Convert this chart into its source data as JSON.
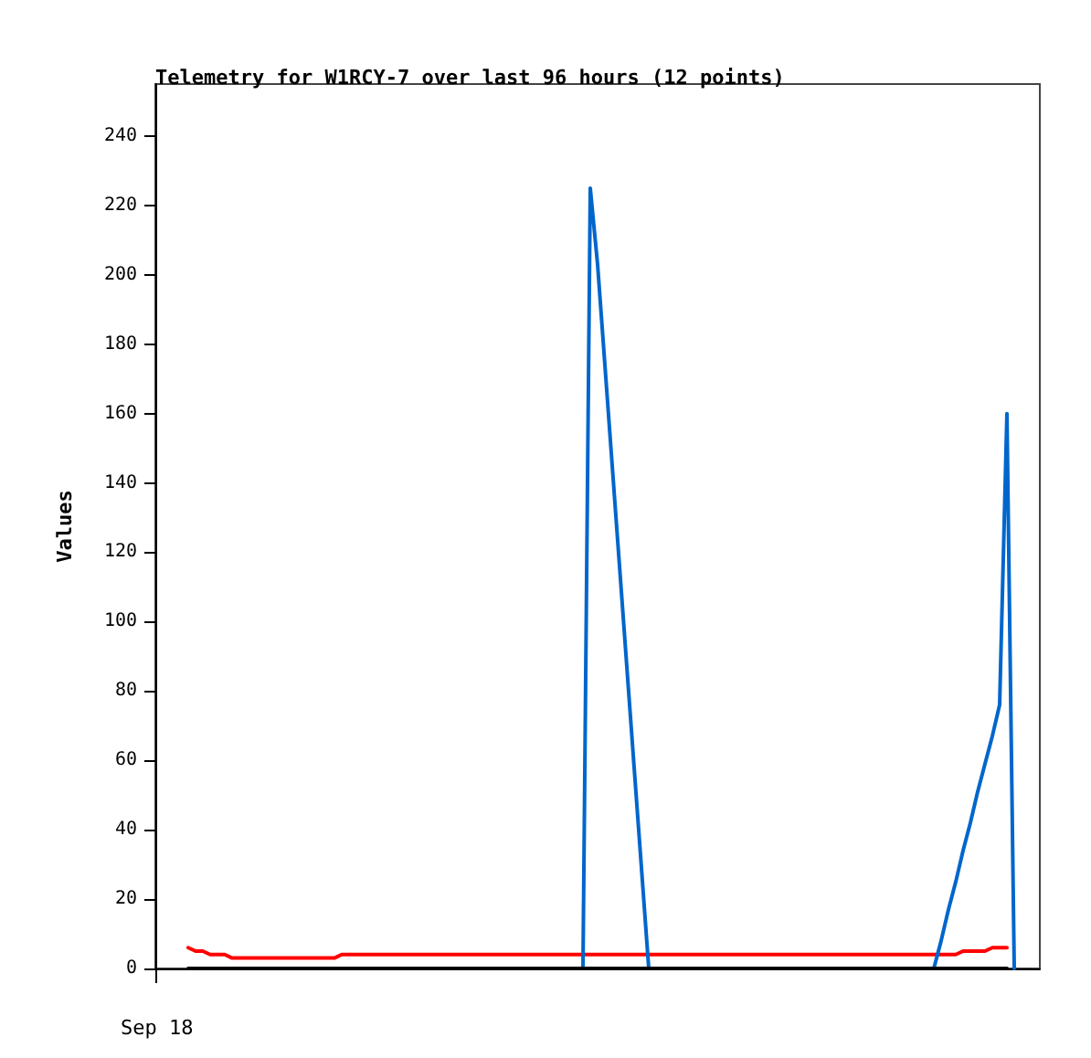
{
  "chart_data": {
    "type": "line",
    "title": "Telemetry for W1RCY-7 over last 96 hours (12 points)",
    "ylabel": "Values",
    "annotations": [
      "Sep 18"
    ],
    "ylim": [
      0,
      255
    ],
    "yticks": [
      0,
      20,
      40,
      60,
      80,
      100,
      120,
      140,
      160,
      180,
      200,
      220,
      240
    ],
    "grid": false,
    "marker": "none",
    "line_style": "solid",
    "categories": [
      null,
      null,
      null,
      null,
      null,
      null,
      null,
      null,
      null,
      null,
      null,
      null,
      null,
      null,
      null,
      null,
      null,
      null,
      null,
      null,
      null,
      null,
      null,
      null,
      null,
      null,
      null,
      null,
      null,
      null,
      null,
      null,
      null,
      null,
      null,
      null,
      null,
      null,
      null,
      null,
      null,
      null,
      null,
      null,
      null,
      null,
      null,
      null,
      null,
      null,
      null,
      null,
      null,
      null,
      null,
      null,
      null,
      null,
      null,
      null,
      null,
      null,
      null,
      null,
      null,
      null,
      null,
      null,
      null,
      null,
      null,
      null,
      null,
      null,
      null,
      null,
      null,
      null,
      null,
      null,
      null,
      null,
      null,
      null,
      null,
      null,
      null,
      null,
      null,
      null,
      null,
      null,
      null,
      null,
      null,
      null,
      null,
      null,
      null,
      null,
      null,
      null,
      null,
      null,
      null,
      null,
      null,
      null,
      null,
      null,
      null,
      null,
      null,
      null
    ],
    "series": [
      {
        "color": "#ff0000",
        "values": [
          6,
          5,
          5,
          4,
          4,
          4,
          3,
          3,
          3,
          3,
          3,
          3,
          3,
          3,
          3,
          3,
          3,
          3,
          3,
          3,
          3,
          4,
          4,
          4,
          4,
          4,
          4,
          4,
          4,
          4,
          4,
          4,
          4,
          4,
          4,
          4,
          4,
          4,
          4,
          4,
          4,
          4,
          4,
          4,
          4,
          4,
          4,
          4,
          4,
          4,
          4,
          4,
          4,
          4,
          4,
          4,
          4,
          4,
          4,
          4,
          4,
          4,
          4,
          4,
          4,
          4,
          4,
          4,
          4,
          4,
          4,
          4,
          4,
          4,
          4,
          4,
          4,
          4,
          4,
          4,
          4,
          4,
          4,
          4,
          4,
          4,
          4,
          4,
          4,
          4,
          4,
          4,
          4,
          4,
          4,
          4,
          4,
          4,
          4,
          4,
          4,
          4,
          4,
          4,
          4,
          4,
          5,
          5,
          5,
          5,
          6,
          6,
          6,
          null
        ]
      },
      {
        "color": "#0066cc",
        "values": [
          null,
          null,
          null,
          null,
          null,
          null,
          null,
          null,
          null,
          null,
          null,
          null,
          null,
          null,
          null,
          null,
          null,
          null,
          null,
          null,
          null,
          null,
          null,
          null,
          null,
          null,
          null,
          null,
          null,
          null,
          null,
          null,
          null,
          null,
          null,
          null,
          null,
          null,
          null,
          null,
          null,
          null,
          null,
          null,
          null,
          null,
          null,
          null,
          null,
          null,
          null,
          null,
          null,
          null,
          0,
          225,
          203,
          174,
          145,
          116,
          87,
          58,
          29,
          0,
          null,
          null,
          null,
          null,
          null,
          null,
          null,
          null,
          null,
          null,
          null,
          null,
          null,
          null,
          null,
          null,
          null,
          null,
          null,
          null,
          null,
          null,
          null,
          null,
          null,
          null,
          null,
          null,
          null,
          null,
          null,
          null,
          null,
          null,
          null,
          null,
          null,
          null,
          0,
          8,
          17,
          25,
          34,
          42,
          51,
          59,
          67,
          76,
          160,
          0
        ]
      },
      {
        "color": "#000000",
        "values": [
          0,
          0,
          0,
          0,
          0,
          0,
          0,
          0,
          0,
          0,
          0,
          0,
          0,
          0,
          0,
          0,
          0,
          0,
          0,
          0,
          0,
          0,
          0,
          0,
          0,
          0,
          0,
          0,
          0,
          0,
          0,
          0,
          0,
          0,
          0,
          0,
          0,
          0,
          0,
          0,
          0,
          0,
          0,
          0,
          0,
          0,
          0,
          0,
          0,
          0,
          0,
          0,
          0,
          0,
          0,
          0,
          0,
          0,
          0,
          0,
          0,
          0,
          0,
          0,
          0,
          0,
          0,
          0,
          0,
          0,
          0,
          0,
          0,
          0,
          0,
          0,
          0,
          0,
          0,
          0,
          0,
          0,
          0,
          0,
          0,
          0,
          0,
          0,
          0,
          0,
          0,
          0,
          0,
          0,
          0,
          0,
          0,
          0,
          0,
          0,
          0,
          0,
          0,
          0,
          0,
          0,
          0,
          0,
          0,
          0,
          0,
          0,
          0,
          null
        ]
      }
    ]
  }
}
